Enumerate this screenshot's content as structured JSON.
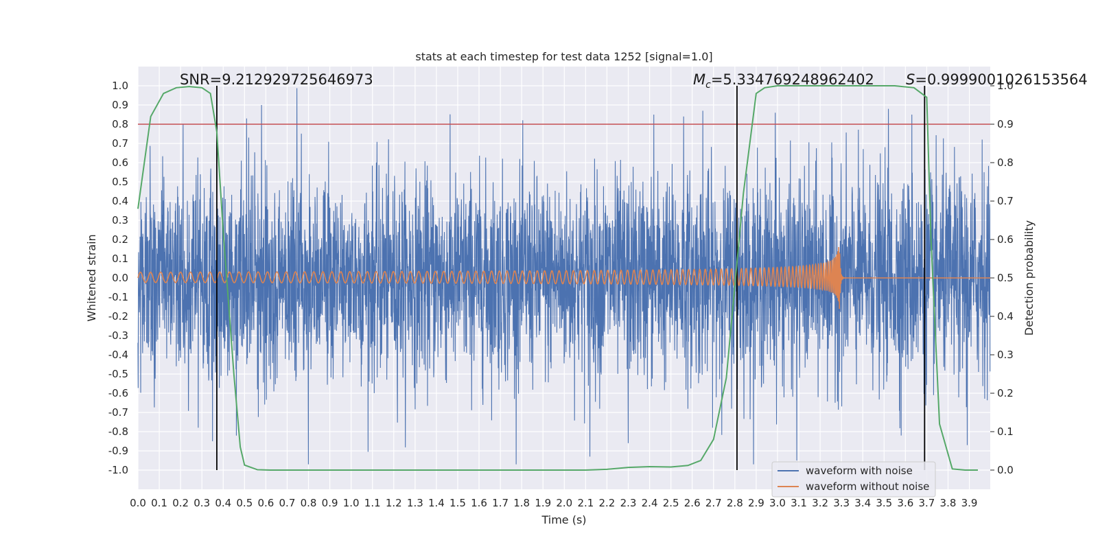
{
  "chart_data": {
    "type": "line",
    "title": "stats at each timestep for test data 1252 [signal=1.0]",
    "xlabel": "Time (s)",
    "ylabel": "Whitened strain",
    "y2label": "Detection probability",
    "xlim": [
      0.0,
      3.998
    ],
    "ylim": [
      -1.1,
      1.1
    ],
    "y2lim": [
      -0.05,
      1.05
    ],
    "x_ticks": [
      0.0,
      0.1,
      0.2,
      0.3,
      0.4,
      0.5,
      0.6,
      0.7,
      0.8,
      0.9,
      1.0,
      1.1,
      1.2,
      1.3,
      1.4,
      1.5,
      1.6,
      1.7,
      1.8,
      1.9,
      2.0,
      2.1,
      2.2,
      2.3,
      2.4,
      2.5,
      2.6,
      2.7,
      2.8,
      2.9,
      3.0,
      3.1,
      3.2,
      3.3,
      3.4,
      3.5,
      3.6,
      3.7,
      3.8,
      3.9
    ],
    "x_tick_labels": [
      "0.0",
      "0.1",
      "0.2",
      "0.3",
      "0.4",
      "0.5",
      "0.6",
      "0.7",
      "0.8",
      "0.9",
      "1.0",
      "1.1",
      "1.2",
      "1.3",
      "1.4",
      "1.5",
      "1.6",
      "1.7",
      "1.8",
      "1.9",
      "2.0",
      "2.1",
      "2.2",
      "2.3",
      "2.4",
      "2.5",
      "2.6",
      "2.7",
      "2.8",
      "2.9",
      "3.0",
      "3.1",
      "3.2",
      "3.3",
      "3.4",
      "3.5",
      "3.6",
      "3.7",
      "3.8",
      "3.9"
    ],
    "y_ticks": [
      1.0,
      0.9,
      0.8,
      0.7,
      0.6,
      0.5,
      0.4,
      0.3,
      0.2,
      0.1,
      0.0,
      -0.1,
      -0.2,
      -0.3,
      -0.4,
      -0.5,
      -0.6,
      -0.7,
      -0.8,
      -0.9,
      -1.0
    ],
    "y_tick_labels": [
      "1.0",
      "0.9",
      "0.8",
      "0.7",
      "0.6",
      "0.5",
      "0.4",
      "0.3",
      "0.2",
      "0.1",
      "0.0",
      "-0.1",
      "-0.2",
      "-0.3",
      "-0.4",
      "-0.5",
      "-0.6",
      "-0.7",
      "-0.8",
      "-0.9",
      "-1.0"
    ],
    "y2_ticks": [
      1.0,
      0.9,
      0.8,
      0.7,
      0.6,
      0.5,
      0.4,
      0.3,
      0.2,
      0.1,
      0.0
    ],
    "y2_tick_labels": [
      "1.0",
      "0.9",
      "0.8",
      "0.7",
      "0.6",
      "0.5",
      "0.4",
      "0.3",
      "0.2",
      "0.1",
      "0.0"
    ],
    "grid": true,
    "legend_position": "bottom-right",
    "series": [
      {
        "name": "waveform with noise",
        "color": "#4c72b0",
        "axis": "left",
        "kind": "noise",
        "typical_amplitude": 0.5,
        "extreme_range": [
          -0.97,
          1.0
        ],
        "notable_peaks": [
          [
            0.51,
            0.83
          ],
          [
            0.58,
            0.9
          ],
          [
            2.42,
            0.85
          ],
          [
            2.56,
            0.84
          ],
          [
            2.65,
            0.87
          ],
          [
            2.99,
            0.86
          ],
          [
            3.52,
            0.88
          ],
          [
            3.63,
            0.85
          ],
          [
            3.96,
            0.72
          ]
        ],
        "notable_troughs": [
          [
            0.35,
            -0.85
          ],
          [
            0.8,
            -0.97
          ],
          [
            2.12,
            -0.93
          ],
          [
            2.3,
            -0.86
          ],
          [
            3.09,
            -0.95
          ],
          [
            3.58,
            -0.82
          ],
          [
            3.89,
            -0.87
          ]
        ]
      },
      {
        "name": "waveform without noise",
        "color": "#dd8452",
        "axis": "left",
        "kind": "chirp",
        "start_amplitude": 0.03,
        "merger_time": 3.29,
        "merger_amplitude": [
          -0.21,
          0.27
        ]
      },
      {
        "name": "detection probability",
        "color": "#55a868",
        "axis": "right",
        "kind": "line",
        "x": [
          0.0,
          0.03,
          0.06,
          0.12,
          0.18,
          0.24,
          0.3,
          0.34,
          0.37,
          0.4,
          0.45,
          0.48,
          0.5,
          0.56,
          0.62,
          0.7,
          0.8,
          1.0,
          1.5,
          2.0,
          2.1,
          2.2,
          2.3,
          2.4,
          2.5,
          2.58,
          2.64,
          2.7,
          2.76,
          2.8,
          2.84,
          2.9,
          2.94,
          3.0,
          3.2,
          3.4,
          3.55,
          3.64,
          3.7,
          3.72,
          3.76,
          3.82,
          3.88,
          3.94
        ],
        "y": [
          0.68,
          0.8,
          0.92,
          0.98,
          0.995,
          0.998,
          0.995,
          0.98,
          0.88,
          0.62,
          0.25,
          0.06,
          0.013,
          0.001,
          0.0,
          0.0,
          0.0,
          0.0,
          0.0,
          0.0,
          0.0,
          0.002,
          0.007,
          0.009,
          0.008,
          0.012,
          0.025,
          0.08,
          0.24,
          0.48,
          0.72,
          0.98,
          0.995,
          1.0,
          1.0,
          1.0,
          1.0,
          0.995,
          0.97,
          0.6,
          0.12,
          0.003,
          0.0,
          0.0
        ]
      }
    ],
    "threshold_line": {
      "value": 0.9,
      "axis": "right",
      "color": "#c44e52"
    },
    "event_lines": [
      0.37,
      2.81,
      3.69
    ],
    "annotations": {
      "snr": "SNR=9.212929725646973",
      "mc_symbol": "M",
      "mc_subscript": "c",
      "mc_value": "=5.334769248962402",
      "s_symbol": "S",
      "s_value": "=0.9999001026153564"
    }
  },
  "legend": {
    "noise_label": "waveform with noise",
    "clean_label": "waveform without noise"
  },
  "colors": {
    "background": "#eaeaf2",
    "grid": "#ffffff",
    "noise": "#4c72b0",
    "clean": "#dd8452",
    "probability": "#55a868",
    "threshold": "#c44e52",
    "event": "#000000"
  }
}
